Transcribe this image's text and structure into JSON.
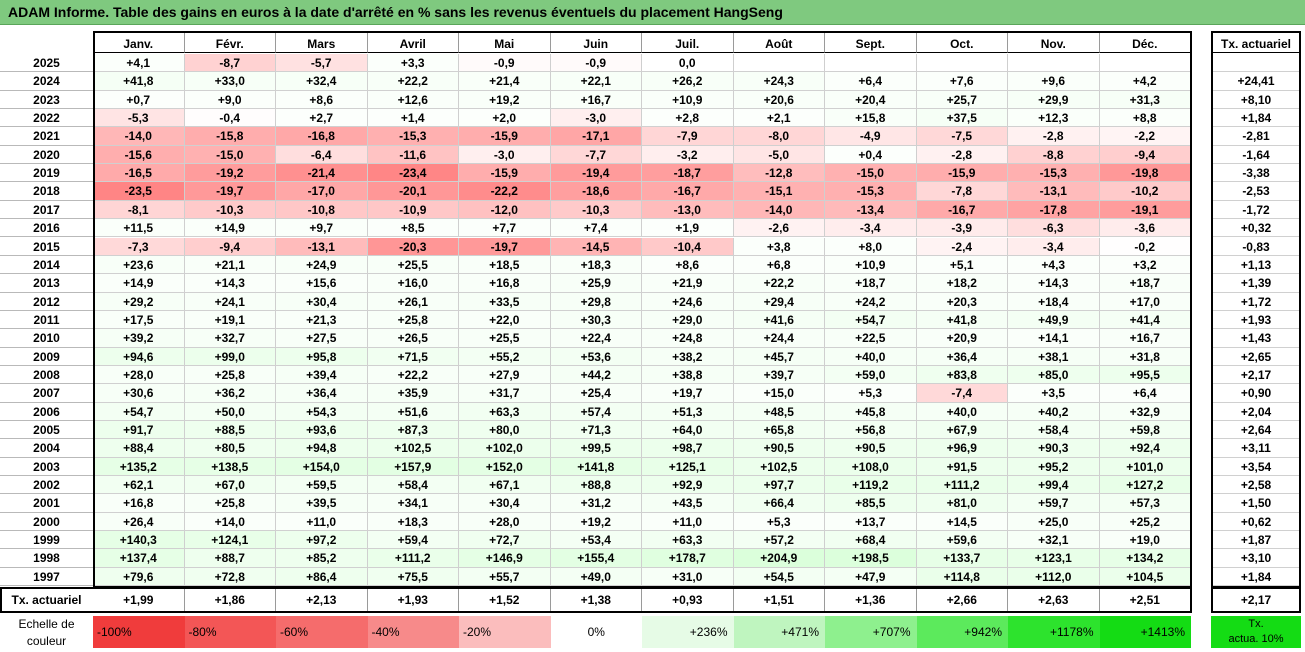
{
  "title": "ADAM Informe. Table des gains en euros à la date d'arrêté en % sans les revenus éventuels du placement HangSeng",
  "chart_data": {
    "type": "table",
    "months": [
      "Janv.",
      "Févr.",
      "Mars",
      "Avril",
      "Mai",
      "Juin",
      "Juil.",
      "Août",
      "Sept.",
      "Oct.",
      "Nov.",
      "Déc."
    ],
    "tx_header": "Tx. actuariel",
    "rows": [
      {
        "year": "2025",
        "values": [
          "+4,1",
          "-8,7",
          "-5,7",
          "+3,3",
          "-0,9",
          "-0,9",
          "0,0",
          "",
          "",
          "",
          "",
          ""
        ],
        "tx": ""
      },
      {
        "year": "2024",
        "values": [
          "+41,8",
          "+33,0",
          "+32,4",
          "+22,2",
          "+21,4",
          "+22,1",
          "+26,2",
          "+24,3",
          "+6,4",
          "+7,6",
          "+9,6",
          "+4,2"
        ],
        "tx": "+24,41"
      },
      {
        "year": "2023",
        "values": [
          "+0,7",
          "+9,0",
          "+8,6",
          "+12,6",
          "+19,2",
          "+16,7",
          "+10,9",
          "+20,6",
          "+20,4",
          "+25,7",
          "+29,9",
          "+31,3"
        ],
        "tx": "+8,10"
      },
      {
        "year": "2022",
        "values": [
          "-5,3",
          "-0,4",
          "+2,7",
          "+1,4",
          "+2,0",
          "-3,0",
          "+2,8",
          "+2,1",
          "+15,8",
          "+37,5",
          "+12,3",
          "+8,8"
        ],
        "tx": "+1,84"
      },
      {
        "year": "2021",
        "values": [
          "-14,0",
          "-15,8",
          "-16,8",
          "-15,3",
          "-15,9",
          "-17,1",
          "-7,9",
          "-8,0",
          "-4,9",
          "-7,5",
          "-2,8",
          "-2,2"
        ],
        "tx": "-2,81"
      },
      {
        "year": "2020",
        "values": [
          "-15,6",
          "-15,0",
          "-6,4",
          "-11,6",
          "-3,0",
          "-7,7",
          "-3,2",
          "-5,0",
          "+0,4",
          "-2,8",
          "-8,8",
          "-9,4"
        ],
        "tx": "-1,64"
      },
      {
        "year": "2019",
        "values": [
          "-16,5",
          "-19,2",
          "-21,4",
          "-23,4",
          "-15,9",
          "-19,4",
          "-18,7",
          "-12,8",
          "-15,0",
          "-15,9",
          "-15,3",
          "-19,8"
        ],
        "tx": "-3,38"
      },
      {
        "year": "2018",
        "values": [
          "-23,5",
          "-19,7",
          "-17,0",
          "-20,1",
          "-22,2",
          "-18,6",
          "-16,7",
          "-15,1",
          "-15,3",
          "-7,8",
          "-13,1",
          "-10,2"
        ],
        "tx": "-2,53"
      },
      {
        "year": "2017",
        "values": [
          "-8,1",
          "-10,3",
          "-10,8",
          "-10,9",
          "-12,0",
          "-10,3",
          "-13,0",
          "-14,0",
          "-13,4",
          "-16,7",
          "-17,8",
          "-19,1"
        ],
        "tx": "-1,72"
      },
      {
        "year": "2016",
        "values": [
          "+11,5",
          "+14,9",
          "+9,7",
          "+8,5",
          "+7,7",
          "+7,4",
          "+1,9",
          "-2,6",
          "-3,4",
          "-3,9",
          "-6,3",
          "-3,6"
        ],
        "tx": "+0,32"
      },
      {
        "year": "2015",
        "values": [
          "-7,3",
          "-9,4",
          "-13,1",
          "-20,3",
          "-19,7",
          "-14,5",
          "-10,4",
          "+3,8",
          "+8,0",
          "-2,4",
          "-3,4",
          "-0,2"
        ],
        "tx": "-0,83"
      },
      {
        "year": "2014",
        "values": [
          "+23,6",
          "+21,1",
          "+24,9",
          "+25,5",
          "+18,5",
          "+18,3",
          "+8,6",
          "+6,8",
          "+10,9",
          "+5,1",
          "+4,3",
          "+3,2"
        ],
        "tx": "+1,13"
      },
      {
        "year": "2013",
        "values": [
          "+14,9",
          "+14,3",
          "+15,6",
          "+16,0",
          "+16,8",
          "+25,9",
          "+21,9",
          "+22,2",
          "+18,7",
          "+18,2",
          "+14,3",
          "+18,7"
        ],
        "tx": "+1,39"
      },
      {
        "year": "2012",
        "values": [
          "+29,2",
          "+24,1",
          "+30,4",
          "+26,1",
          "+33,5",
          "+29,8",
          "+24,6",
          "+29,4",
          "+24,2",
          "+20,3",
          "+18,4",
          "+17,0"
        ],
        "tx": "+1,72"
      },
      {
        "year": "2011",
        "values": [
          "+17,5",
          "+19,1",
          "+21,3",
          "+25,8",
          "+22,0",
          "+30,3",
          "+29,0",
          "+41,6",
          "+54,7",
          "+41,8",
          "+49,9",
          "+41,4"
        ],
        "tx": "+1,93"
      },
      {
        "year": "2010",
        "values": [
          "+39,2",
          "+32,7",
          "+27,5",
          "+26,5",
          "+25,5",
          "+22,4",
          "+24,8",
          "+24,4",
          "+22,5",
          "+20,9",
          "+14,1",
          "+16,7"
        ],
        "tx": "+1,43"
      },
      {
        "year": "2009",
        "values": [
          "+94,6",
          "+99,0",
          "+95,8",
          "+71,5",
          "+55,2",
          "+53,6",
          "+38,2",
          "+45,7",
          "+40,0",
          "+36,4",
          "+38,1",
          "+31,8"
        ],
        "tx": "+2,65"
      },
      {
        "year": "2008",
        "values": [
          "+28,0",
          "+25,8",
          "+39,4",
          "+22,2",
          "+27,9",
          "+44,2",
          "+38,8",
          "+39,7",
          "+59,0",
          "+83,8",
          "+85,0",
          "+95,5"
        ],
        "tx": "+2,17"
      },
      {
        "year": "2007",
        "values": [
          "+30,6",
          "+36,2",
          "+36,4",
          "+35,9",
          "+31,7",
          "+25,4",
          "+19,7",
          "+15,0",
          "+5,3",
          "-7,4",
          "+3,5",
          "+6,4"
        ],
        "tx": "+0,90"
      },
      {
        "year": "2006",
        "values": [
          "+54,7",
          "+50,0",
          "+54,3",
          "+51,6",
          "+63,3",
          "+57,4",
          "+51,3",
          "+48,5",
          "+45,8",
          "+40,0",
          "+40,2",
          "+32,9"
        ],
        "tx": "+2,04"
      },
      {
        "year": "2005",
        "values": [
          "+91,7",
          "+88,5",
          "+93,6",
          "+87,3",
          "+80,0",
          "+71,3",
          "+64,0",
          "+65,8",
          "+56,8",
          "+67,9",
          "+58,4",
          "+59,8"
        ],
        "tx": "+2,64"
      },
      {
        "year": "2004",
        "values": [
          "+88,4",
          "+80,5",
          "+94,8",
          "+102,5",
          "+102,0",
          "+99,5",
          "+98,7",
          "+90,5",
          "+90,5",
          "+96,9",
          "+90,3",
          "+92,4"
        ],
        "tx": "+3,11"
      },
      {
        "year": "2003",
        "values": [
          "+135,2",
          "+138,5",
          "+154,0",
          "+157,9",
          "+152,0",
          "+141,8",
          "+125,1",
          "+102,5",
          "+108,0",
          "+91,5",
          "+95,2",
          "+101,0"
        ],
        "tx": "+3,54"
      },
      {
        "year": "2002",
        "values": [
          "+62,1",
          "+67,0",
          "+59,5",
          "+58,4",
          "+67,1",
          "+88,8",
          "+92,9",
          "+97,7",
          "+119,2",
          "+111,2",
          "+99,4",
          "+127,2"
        ],
        "tx": "+2,58"
      },
      {
        "year": "2001",
        "values": [
          "+16,8",
          "+25,8",
          "+39,5",
          "+34,1",
          "+30,4",
          "+31,2",
          "+43,5",
          "+66,4",
          "+85,5",
          "+81,0",
          "+59,7",
          "+57,3"
        ],
        "tx": "+1,50"
      },
      {
        "year": "2000",
        "values": [
          "+26,4",
          "+14,0",
          "+11,0",
          "+18,3",
          "+28,0",
          "+19,2",
          "+11,0",
          "+5,3",
          "+13,7",
          "+14,5",
          "+25,0",
          "+25,2"
        ],
        "tx": "+0,62"
      },
      {
        "year": "1999",
        "values": [
          "+140,3",
          "+124,1",
          "+97,2",
          "+59,4",
          "+72,7",
          "+53,4",
          "+63,3",
          "+57,2",
          "+68,4",
          "+59,6",
          "+32,1",
          "+19,0"
        ],
        "tx": "+1,87"
      },
      {
        "year": "1998",
        "values": [
          "+137,4",
          "+88,7",
          "+85,2",
          "+111,2",
          "+146,9",
          "+155,4",
          "+178,7",
          "+204,9",
          "+198,5",
          "+133,7",
          "+123,1",
          "+134,2"
        ],
        "tx": "+3,10"
      },
      {
        "year": "1997",
        "values": [
          "+79,6",
          "+72,8",
          "+86,4",
          "+75,5",
          "+55,7",
          "+49,0",
          "+31,0",
          "+54,5",
          "+47,9",
          "+114,8",
          "+112,0",
          "+104,5"
        ],
        "tx": "+1,84"
      }
    ],
    "footer": {
      "label": "Tx. actuariel",
      "values": [
        "+1,99",
        "+1,86",
        "+2,13",
        "+1,93",
        "+1,52",
        "+1,38",
        "+0,93",
        "+1,51",
        "+1,36",
        "+2,66",
        "+2,63",
        "+2,51"
      ],
      "tx": "+2,17"
    },
    "legend": {
      "label_line1": "Echelle de",
      "label_line2": "couleur",
      "stops": [
        {
          "label": "-100%",
          "color": "#f03c3c"
        },
        {
          "label": "-80%",
          "color": "#f35656"
        },
        {
          "label": "-60%",
          "color": "#f56c6c"
        },
        {
          "label": "-40%",
          "color": "#f78a8a"
        },
        {
          "label": "-20%",
          "color": "#fbbdbd"
        },
        {
          "label": "0%",
          "color": "#ffffff"
        },
        {
          "label": "+236%",
          "color": "#e6fbe6"
        },
        {
          "label": "+471%",
          "color": "#bff5bf"
        },
        {
          "label": "+707%",
          "color": "#8ef08e"
        },
        {
          "label": "+942%",
          "color": "#5cea5c"
        },
        {
          "label": "+1178%",
          "color": "#2de32d"
        },
        {
          "label": "+1413%",
          "color": "#14dc14"
        }
      ],
      "tx_line1": "Tx.",
      "tx_line2": "actua. 10%",
      "tx_color": "#14dc14"
    }
  }
}
